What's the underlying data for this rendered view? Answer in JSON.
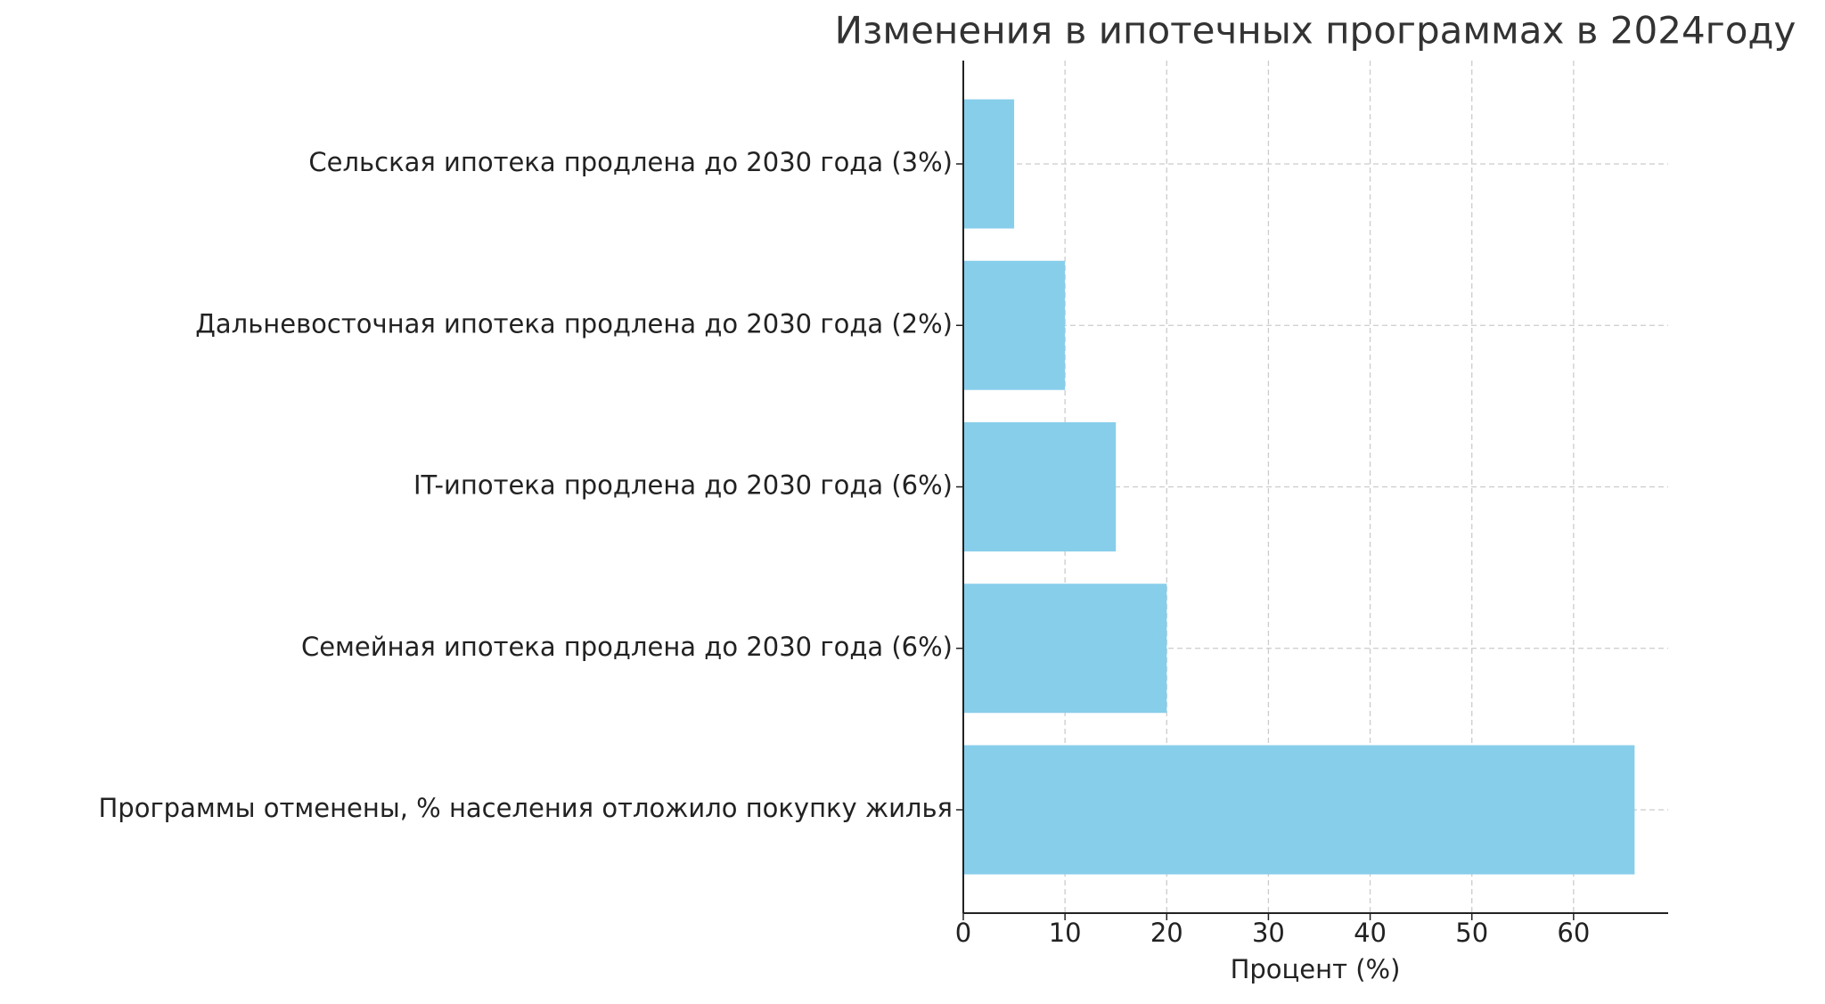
{
  "chart_data": {
    "type": "barh",
    "title": "Изменения в ипотечных программах в 2024году",
    "xlabel": "Процент (%)",
    "categories": [
      "Сельская ипотека продлена до 2030 года (3%)",
      "Дальневосточная ипотека продлена до 2030 года (2%)",
      "IT-ипотека продлена до 2030 года (6%)",
      "Семейная ипотека продлена до 2030 года (6%)",
      "Программы отменены, % населения отложило покупку жилья"
    ],
    "values": [
      5,
      10,
      15,
      20,
      66
    ],
    "color": "#87ceeb",
    "xlim": [
      0,
      69.3
    ],
    "xticks": [
      0,
      10,
      20,
      30,
      40,
      50,
      60
    ],
    "grid": true
  }
}
